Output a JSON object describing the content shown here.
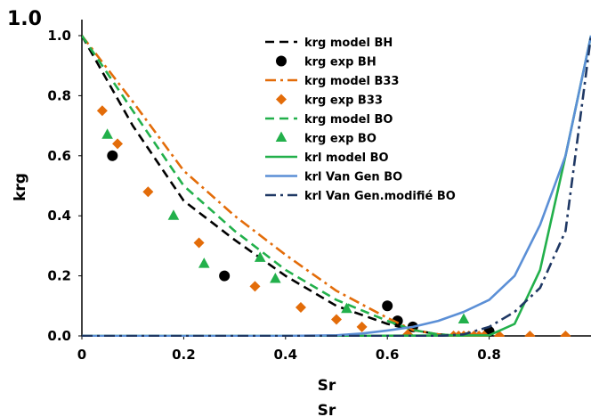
{
  "chart_data": {
    "type": "scatter",
    "title": "",
    "xlabel": "Sr",
    "ylabel": "krg",
    "xlim": [
      0,
      1
    ],
    "ylim": [
      0,
      1
    ],
    "x_ticks": [
      "0",
      "0.2",
      "0.4",
      "0.6",
      "0.8"
    ],
    "y_ticks": [
      "0.0",
      "0.2",
      "0.4",
      "0.6",
      "0.8",
      "1.0"
    ],
    "legend_position": "top-center",
    "grid": false,
    "overlay_text": {
      "top_left_label": "1.0",
      "bottom_duplicate_xlabel": "Sr"
    },
    "series": [
      {
        "name": "krg model BH",
        "kind": "line",
        "style": "dashed",
        "color": "#000000",
        "x": [
          0,
          0.1,
          0.2,
          0.3,
          0.4,
          0.5,
          0.6,
          0.65,
          0.7,
          0.75
        ],
        "y": [
          1.0,
          0.7,
          0.45,
          0.32,
          0.2,
          0.1,
          0.04,
          0.02,
          0.005,
          0.0
        ]
      },
      {
        "name": "krg exp BH",
        "kind": "points",
        "marker": "circle",
        "color": "#000000",
        "x": [
          0.06,
          0.28,
          0.6,
          0.62,
          0.65,
          0.8
        ],
        "y": [
          0.6,
          0.2,
          0.1,
          0.05,
          0.03,
          0.015
        ]
      },
      {
        "name": "krg model B33",
        "kind": "line",
        "style": "dashdot",
        "color": "#e36c09",
        "x": [
          0,
          0.1,
          0.2,
          0.3,
          0.4,
          0.5,
          0.6,
          0.65,
          0.7,
          0.75
        ],
        "y": [
          1.0,
          0.78,
          0.55,
          0.4,
          0.27,
          0.15,
          0.06,
          0.02,
          0.005,
          0.0
        ]
      },
      {
        "name": "krg exp B33",
        "kind": "points",
        "marker": "diamond",
        "color": "#e36c09",
        "x": [
          0.04,
          0.07,
          0.13,
          0.23,
          0.34,
          0.43,
          0.5,
          0.55,
          0.64,
          0.73,
          0.74,
          0.75,
          0.76,
          0.77,
          0.78,
          0.79,
          0.82,
          0.88,
          0.95
        ],
        "y": [
          0.75,
          0.64,
          0.48,
          0.31,
          0.165,
          0.095,
          0.055,
          0.03,
          0.005,
          0.0,
          0.0,
          0.0,
          0.0,
          0.0,
          0.0,
          0.0,
          0.0,
          0.0,
          0.0
        ]
      },
      {
        "name": "krg model BO",
        "kind": "line",
        "style": "dashed",
        "color": "#22b04b",
        "x": [
          0,
          0.1,
          0.2,
          0.3,
          0.4,
          0.5,
          0.6,
          0.65,
          0.7,
          0.75
        ],
        "y": [
          1.0,
          0.75,
          0.5,
          0.35,
          0.22,
          0.12,
          0.05,
          0.02,
          0.005,
          0.0
        ]
      },
      {
        "name": "krg exp BO",
        "kind": "points",
        "marker": "triangle",
        "color": "#22b04b",
        "x": [
          0.05,
          0.18,
          0.24,
          0.35,
          0.38,
          0.52,
          0.75
        ],
        "y": [
          0.67,
          0.4,
          0.24,
          0.26,
          0.19,
          0.09,
          0.055
        ]
      },
      {
        "name": "krl model BO",
        "kind": "line",
        "style": "solid",
        "color": "#22b04b",
        "x": [
          0,
          0.5,
          0.8,
          0.85,
          0.9,
          0.95,
          1.0
        ],
        "y": [
          0,
          0,
          0.002,
          0.04,
          0.22,
          0.6,
          1.0
        ]
      },
      {
        "name": "krl Van Gen BO",
        "kind": "line",
        "style": "solid",
        "color": "#5b8fd6",
        "x": [
          0,
          0.4,
          0.5,
          0.55,
          0.6,
          0.65,
          0.7,
          0.75,
          0.8,
          0.85,
          0.9,
          0.95,
          1.0
        ],
        "y": [
          0,
          0,
          0.002,
          0.008,
          0.018,
          0.03,
          0.05,
          0.08,
          0.12,
          0.2,
          0.37,
          0.6,
          1.0
        ]
      },
      {
        "name": "krl Van Gen.modifié  BO",
        "kind": "line",
        "style": "dashdot",
        "color": "#1f3864",
        "x": [
          0,
          0.7,
          0.75,
          0.8,
          0.85,
          0.9,
          0.95,
          1.0
        ],
        "y": [
          0,
          0,
          0.005,
          0.03,
          0.08,
          0.16,
          0.35,
          1.0
        ]
      }
    ]
  }
}
